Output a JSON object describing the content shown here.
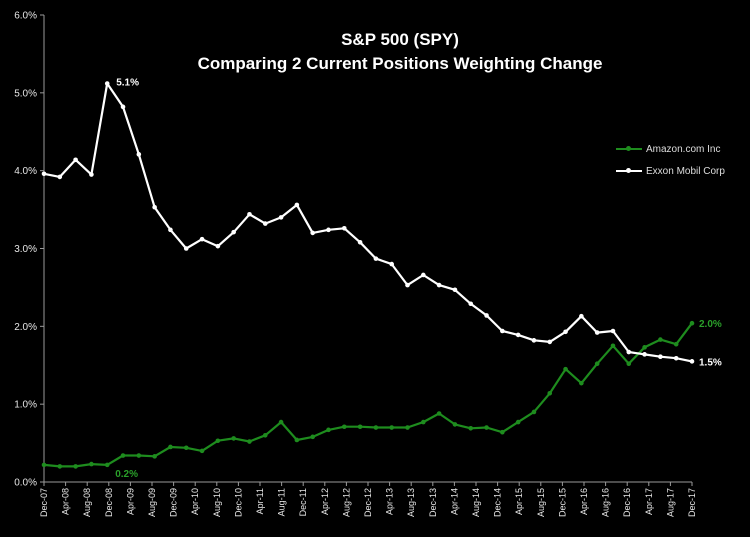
{
  "chart_data": {
    "type": "line",
    "title": "S&P 500 (SPY)",
    "subtitle": "Comparing 2 Current Positions Weighting Change",
    "xlabel": "",
    "ylabel": "",
    "ylim": [
      0,
      6
    ],
    "y_ticks": [
      "0.0%",
      "1.0%",
      "2.0%",
      "3.0%",
      "4.0%",
      "5.0%",
      "6.0%"
    ],
    "x_tick_labels": [
      "Dec-07",
      "Apr-08",
      "Aug-08",
      "Dec-08",
      "Apr-09",
      "Aug-09",
      "Dec-09",
      "Apr-10",
      "Aug-10",
      "Dec-10",
      "Apr-11",
      "Aug-11",
      "Dec-11",
      "Apr-12",
      "Aug-12",
      "Dec-12",
      "Apr-13",
      "Aug-13",
      "Dec-13",
      "Apr-14",
      "Aug-14",
      "Dec-14",
      "Apr-15",
      "Aug-15",
      "Dec-15",
      "Apr-16",
      "Aug-16",
      "Dec-16",
      "Apr-17",
      "Aug-17",
      "Dec-17"
    ],
    "legend_position": "right",
    "grid": false,
    "series": [
      {
        "name": "Amazon.com Inc",
        "color": "#1e8c1e",
        "values": [
          0.22,
          0.2,
          0.2,
          0.23,
          0.22,
          0.34,
          0.34,
          0.33,
          0.45,
          0.44,
          0.4,
          0.53,
          0.56,
          0.52,
          0.6,
          0.77,
          0.54,
          0.58,
          0.67,
          0.71,
          0.71,
          0.7,
          0.7,
          0.7,
          0.77,
          0.88,
          0.74,
          0.69,
          0.7,
          0.64,
          0.77,
          0.9,
          1.14,
          1.45,
          1.27,
          1.52,
          1.75,
          1.52,
          1.73,
          1.83,
          1.77,
          2.04
        ],
        "labels": [
          {
            "index": 4,
            "text": "0.2%"
          },
          {
            "index": 41,
            "text": "2.0%"
          }
        ]
      },
      {
        "name": "Exxon Mobil Corp",
        "color": "#ffffff",
        "values": [
          3.96,
          3.92,
          4.14,
          3.95,
          5.12,
          4.82,
          4.21,
          3.53,
          3.24,
          3.0,
          3.12,
          3.03,
          3.21,
          3.44,
          3.32,
          3.4,
          3.56,
          3.2,
          3.24,
          3.26,
          3.08,
          2.87,
          2.8,
          2.53,
          2.66,
          2.53,
          2.47,
          2.29,
          2.14,
          1.94,
          1.89,
          1.82,
          1.8,
          1.93,
          2.13,
          1.92,
          1.94,
          1.67,
          1.64,
          1.61,
          1.59,
          1.55
        ],
        "labels": [
          {
            "index": 4,
            "text": "5.1%"
          },
          {
            "index": 41,
            "text": "1.5%"
          }
        ]
      }
    ]
  }
}
